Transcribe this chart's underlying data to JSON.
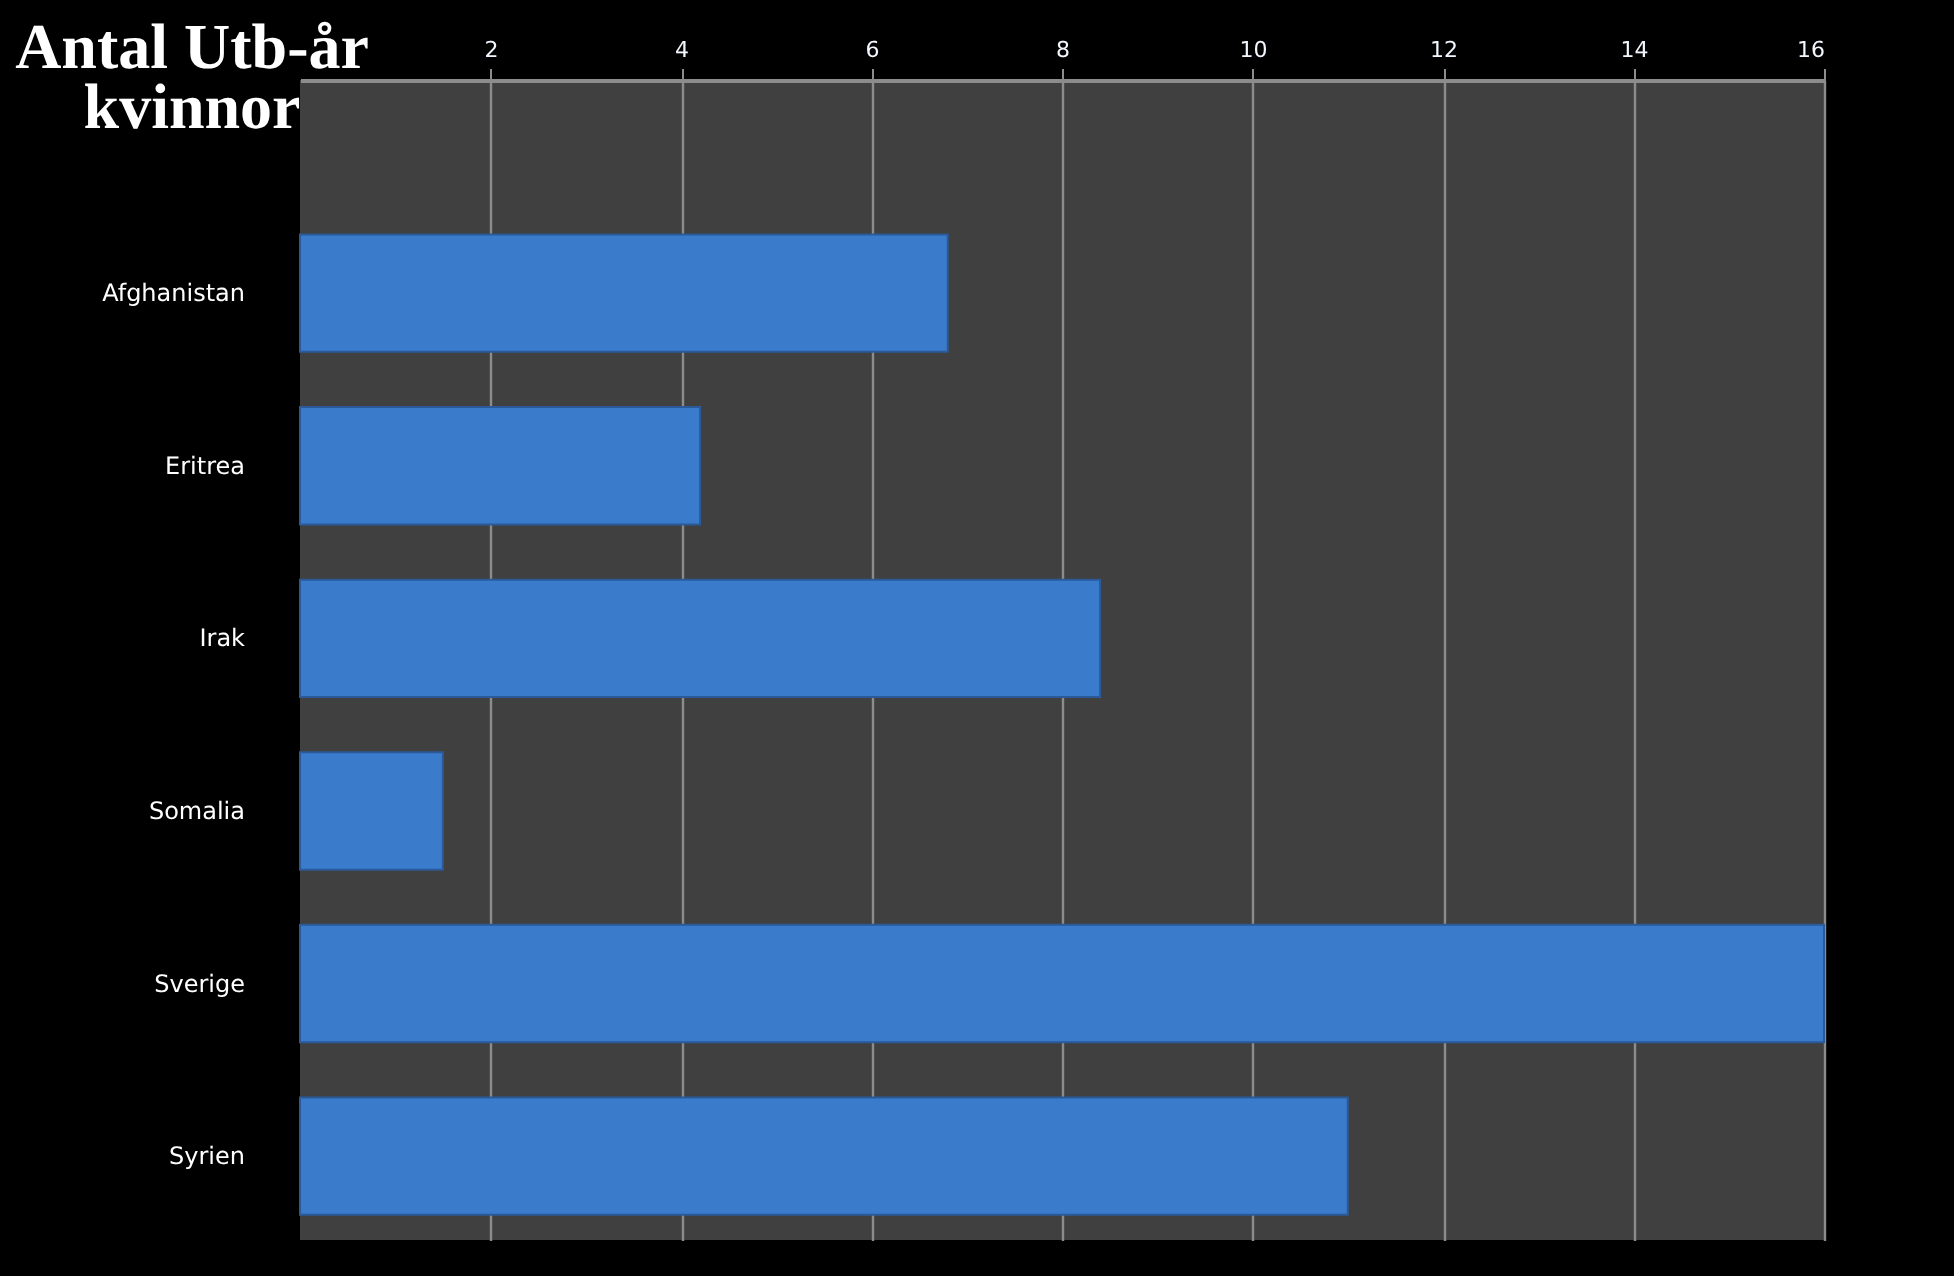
{
  "chart_data": {
    "type": "bar",
    "orientation": "horizontal",
    "title": "Antal Utb-år kvinnor",
    "categories": [
      "Afghanistan",
      "Eritrea",
      "Irak",
      "Somalia",
      "Sverige",
      "Syrien"
    ],
    "values": [
      6.8,
      4.2,
      8.4,
      1.5,
      16,
      11
    ],
    "color": "#3b7bcc",
    "xlim": [
      0,
      16
    ],
    "xticks": [
      2,
      4,
      6,
      8,
      10,
      12,
      14,
      16
    ],
    "grid": "x"
  }
}
